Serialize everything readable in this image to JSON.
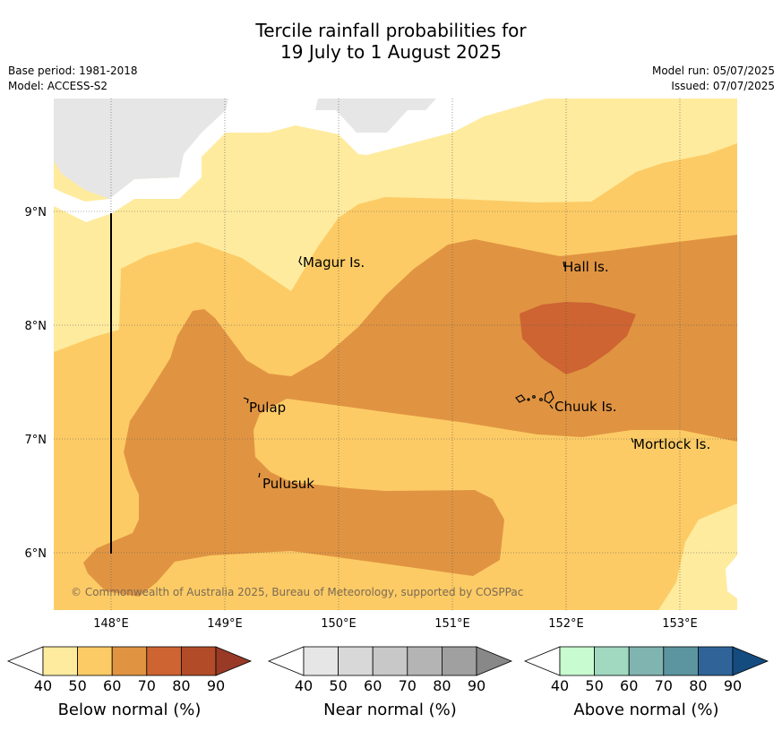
{
  "header": {
    "title_line1": "Tercile rainfall probabilities for",
    "title_line2": "19 July to 1 August 2025",
    "base_period": "Base period: 1981-2018",
    "model": "Model: ACCESS-S2",
    "model_run": "Model run: 05/07/2025",
    "issued": "Issued: 07/07/2025"
  },
  "map": {
    "lon_ticks": [
      "148°E",
      "149°E",
      "150°E",
      "151°E",
      "152°E",
      "153°E"
    ],
    "lat_ticks": [
      "9°N",
      "8°N",
      "7°N",
      "6°N"
    ],
    "places": [
      {
        "name": "Magur Is."
      },
      {
        "name": "Hall Is."
      },
      {
        "name": "Pulap"
      },
      {
        "name": "Chuuk Is."
      },
      {
        "name": "Mortlock Is."
      },
      {
        "name": "Pulusuk"
      }
    ],
    "copyright": "© Commonwealth of Australia 2025, Bureau of Meteorology, supported by COSPPac",
    "colors": {
      "no_data": "#e6e6e6",
      "below_40_50": "#feeb9e",
      "below_50_60": "#fdcb65",
      "below_60_70": "#e09442",
      "below_70_80": "#cd6432"
    }
  },
  "legends": [
    {
      "id": "below",
      "label": "Below normal (%)",
      "ticks": [
        "40",
        "50",
        "60",
        "70",
        "80",
        "90"
      ],
      "colors": [
        "#feeb9e",
        "#fdcb65",
        "#e09442",
        "#cd6432",
        "#b24c28",
        "#983a26"
      ]
    },
    {
      "id": "near",
      "label": "Near normal (%)",
      "ticks": [
        "40",
        "50",
        "60",
        "70",
        "80",
        "90"
      ],
      "colors": [
        "#e6e6e6",
        "#d8d8d8",
        "#c8c8c8",
        "#b4b4b4",
        "#a0a0a0",
        "#888888"
      ]
    },
    {
      "id": "above",
      "label": "Above normal (%)",
      "ticks": [
        "40",
        "50",
        "60",
        "70",
        "80",
        "90"
      ],
      "colors": [
        "#c8fcd0",
        "#a0d8c0",
        "#80b4b0",
        "#5c94a0",
        "#306498",
        "#144c80"
      ]
    }
  ]
}
